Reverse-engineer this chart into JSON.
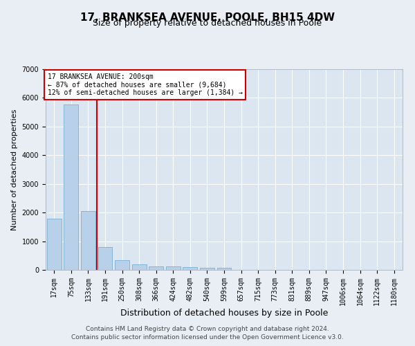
{
  "title": "17, BRANKSEA AVENUE, POOLE, BH15 4DW",
  "subtitle": "Size of property relative to detached houses in Poole",
  "xlabel": "Distribution of detached houses by size in Poole",
  "ylabel": "Number of detached properties",
  "categories": [
    "17sqm",
    "75sqm",
    "133sqm",
    "191sqm",
    "250sqm",
    "308sqm",
    "366sqm",
    "424sqm",
    "482sqm",
    "540sqm",
    "599sqm",
    "657sqm",
    "715sqm",
    "773sqm",
    "831sqm",
    "889sqm",
    "947sqm",
    "1006sqm",
    "1064sqm",
    "1122sqm",
    "1180sqm"
  ],
  "values": [
    1780,
    5780,
    2060,
    800,
    340,
    200,
    130,
    110,
    100,
    75,
    70,
    0,
    0,
    0,
    0,
    0,
    0,
    0,
    0,
    0,
    0
  ],
  "bar_color": "#b8d0e8",
  "bar_edge_color": "#7aafd4",
  "vline_x_index": 2.5,
  "vline_color": "#cc0000",
  "annotation_text": "17 BRANKSEA AVENUE: 200sqm\n← 87% of detached houses are smaller (9,684)\n12% of semi-detached houses are larger (1,384) →",
  "annotation_box_color": "#ffffff",
  "annotation_box_edge_color": "#cc0000",
  "ylim": [
    0,
    7000
  ],
  "yticks": [
    0,
    1000,
    2000,
    3000,
    4000,
    5000,
    6000,
    7000
  ],
  "background_color": "#e8eef4",
  "plot_background_color": "#dce6f0",
  "grid_color": "#ffffff",
  "footer_line1": "Contains HM Land Registry data © Crown copyright and database right 2024.",
  "footer_line2": "Contains public sector information licensed under the Open Government Licence v3.0.",
  "title_fontsize": 11,
  "subtitle_fontsize": 9,
  "xlabel_fontsize": 9,
  "ylabel_fontsize": 8,
  "tick_fontsize": 7,
  "footer_fontsize": 6.5
}
